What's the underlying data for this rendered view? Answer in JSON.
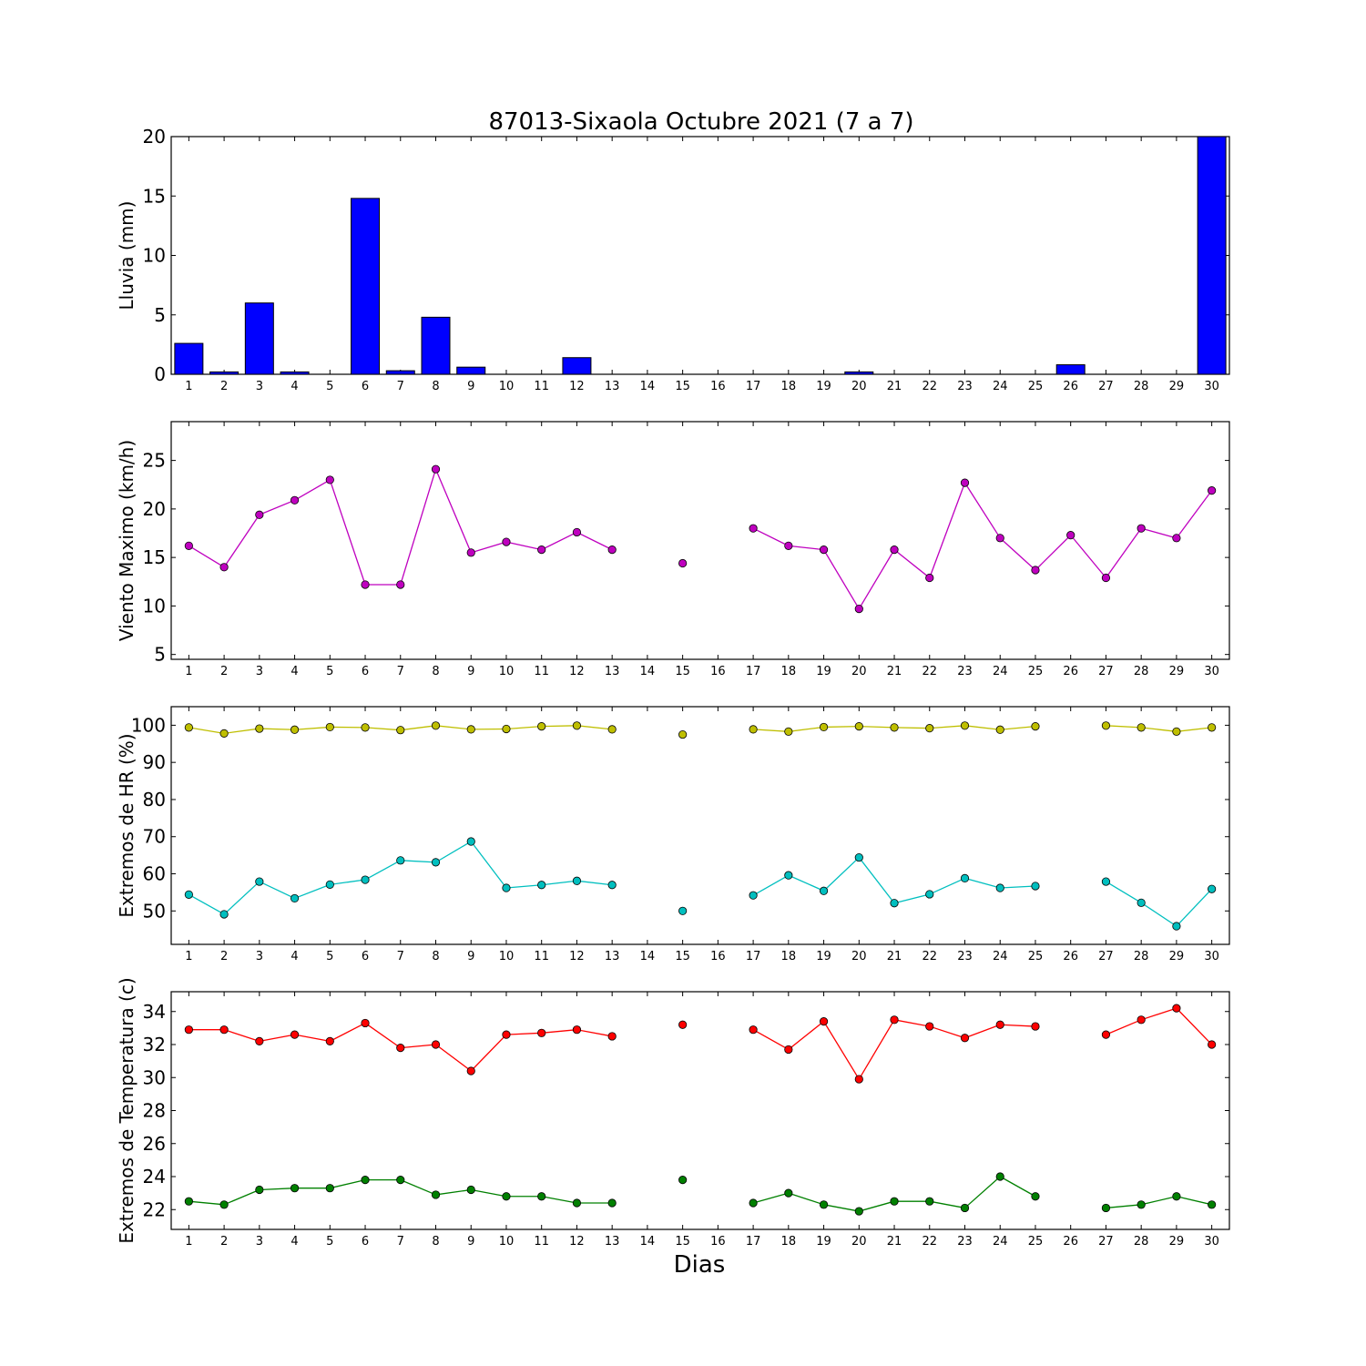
{
  "chart_data": [
    {
      "type": "bar",
      "title": "87013-Sixaola Octubre 2021  (7 a 7)",
      "ylabel": "Lluvia (mm)",
      "ylim": [
        0,
        20
      ],
      "yticks": [
        0,
        5,
        10,
        15,
        20
      ],
      "x": [
        1,
        2,
        3,
        4,
        5,
        6,
        7,
        8,
        9,
        10,
        11,
        12,
        13,
        14,
        15,
        16,
        17,
        18,
        19,
        20,
        21,
        22,
        23,
        24,
        25,
        26,
        27,
        28,
        29,
        30
      ],
      "series": [
        {
          "color": "#0000ff",
          "values": [
            2.6,
            0.2,
            6.0,
            0.2,
            0.0,
            14.8,
            0.3,
            4.8,
            0.6,
            0.0,
            0.0,
            1.4,
            0.0,
            0.0,
            0.0,
            0.0,
            0.0,
            0.0,
            0.0,
            0.2,
            0.0,
            0.0,
            0.0,
            0.0,
            0.0,
            0.8,
            0.0,
            0.0,
            0.0,
            20.0
          ]
        }
      ]
    },
    {
      "type": "line",
      "ylabel": "Viento Maximo (km/h)",
      "ylim": [
        4.5,
        29
      ],
      "yticks": [
        5,
        10,
        15,
        20,
        25
      ],
      "x": [
        1,
        2,
        3,
        4,
        5,
        6,
        7,
        8,
        9,
        10,
        11,
        12,
        13,
        14,
        15,
        16,
        17,
        18,
        19,
        20,
        21,
        22,
        23,
        24,
        25,
        26,
        27,
        28,
        29,
        30
      ],
      "series": [
        {
          "color": "#bf00bf",
          "values": [
            16.2,
            14.0,
            19.4,
            20.9,
            23.0,
            12.2,
            12.2,
            24.1,
            15.5,
            16.6,
            15.8,
            17.6,
            15.8,
            null,
            14.4,
            null,
            18.0,
            16.2,
            15.8,
            9.7,
            15.8,
            12.9,
            22.7,
            17.0,
            13.7,
            17.3,
            12.9,
            18.0,
            17.0,
            21.9
          ]
        }
      ]
    },
    {
      "type": "line",
      "ylabel": "Extremos de HR (%)",
      "ylim": [
        41,
        105
      ],
      "yticks": [
        50,
        60,
        70,
        80,
        90,
        100
      ],
      "x": [
        1,
        2,
        3,
        4,
        5,
        6,
        7,
        8,
        9,
        10,
        11,
        12,
        13,
        14,
        15,
        16,
        17,
        18,
        19,
        20,
        21,
        22,
        23,
        24,
        25,
        26,
        27,
        28,
        29,
        30
      ],
      "series": [
        {
          "color": "#bfbf00",
          "values": [
            99.4,
            97.8,
            99.1,
            98.8,
            99.5,
            99.4,
            98.7,
            99.9,
            98.9,
            99.0,
            99.7,
            99.9,
            98.9,
            null,
            97.5,
            null,
            98.9,
            98.3,
            99.5,
            99.7,
            99.4,
            99.2,
            99.9,
            98.8,
            99.7,
            null,
            99.9,
            99.4,
            98.3,
            99.4
          ]
        },
        {
          "color": "#00bfbf",
          "values": [
            54.4,
            49.1,
            57.9,
            53.4,
            57.1,
            58.4,
            63.6,
            63.1,
            68.7,
            56.2,
            57.0,
            58.1,
            57.0,
            null,
            50.0,
            null,
            54.2,
            59.6,
            55.4,
            64.4,
            52.1,
            54.5,
            58.8,
            56.2,
            56.7,
            null,
            57.9,
            52.2,
            45.9,
            55.9
          ]
        }
      ]
    },
    {
      "type": "line",
      "ylabel": "Extremos de Temperatura (c)",
      "ylim": [
        20.8,
        35.2
      ],
      "yticks": [
        22,
        24,
        26,
        28,
        30,
        32,
        34
      ],
      "x": [
        1,
        2,
        3,
        4,
        5,
        6,
        7,
        8,
        9,
        10,
        11,
        12,
        13,
        14,
        15,
        16,
        17,
        18,
        19,
        20,
        21,
        22,
        23,
        24,
        25,
        26,
        27,
        28,
        29,
        30
      ],
      "xlabel": "Dias",
      "series": [
        {
          "color": "#ff0000",
          "values": [
            32.9,
            32.9,
            32.2,
            32.6,
            32.2,
            33.3,
            31.8,
            32.0,
            30.4,
            32.6,
            32.7,
            32.9,
            32.5,
            null,
            33.2,
            null,
            32.9,
            31.7,
            33.4,
            29.9,
            33.5,
            33.1,
            32.4,
            33.2,
            33.1,
            null,
            32.6,
            33.5,
            34.2,
            32.0
          ]
        },
        {
          "color": "#008000",
          "values": [
            22.5,
            22.3,
            23.2,
            23.3,
            23.3,
            23.8,
            23.8,
            22.9,
            23.2,
            22.8,
            22.8,
            22.4,
            22.4,
            null,
            23.8,
            null,
            22.4,
            23.0,
            22.3,
            21.9,
            22.5,
            22.5,
            22.1,
            24.0,
            22.8,
            null,
            22.1,
            22.3,
            22.8,
            22.3
          ]
        }
      ]
    }
  ]
}
